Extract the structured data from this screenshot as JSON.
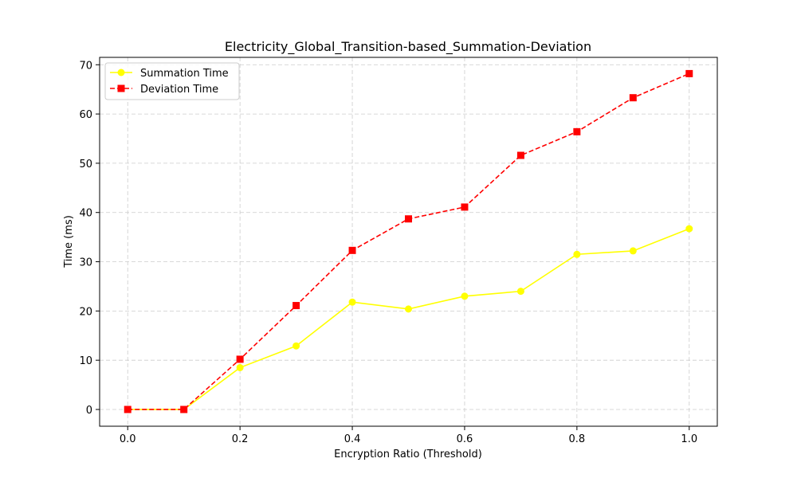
{
  "chart_data": {
    "type": "line",
    "title": "Electricity_Global_Transition-based_Summation-Deviation",
    "xlabel": "Encryption Ratio (Threshold)",
    "ylabel": "Time (ms)",
    "x": [
      0.0,
      0.1,
      0.2,
      0.3,
      0.4,
      0.5,
      0.6,
      0.7,
      0.8,
      0.9,
      1.0
    ],
    "xlim": [
      -0.05,
      1.05
    ],
    "ylim": [
      -3.4,
      71.5
    ],
    "x_ticks": [
      0.0,
      0.2,
      0.4,
      0.6,
      0.8,
      1.0
    ],
    "x_tick_labels": [
      "0.0",
      "0.2",
      "0.4",
      "0.6",
      "0.8",
      "1.0"
    ],
    "y_ticks": [
      0,
      10,
      20,
      30,
      40,
      50,
      60,
      70
    ],
    "y_tick_labels": [
      "0",
      "10",
      "20",
      "30",
      "40",
      "50",
      "60",
      "70"
    ],
    "grid": true,
    "legend_position": "top-left",
    "series": [
      {
        "name": "Summation Time",
        "color": "#ffff00",
        "marker": "circle",
        "line_style": "solid",
        "values": [
          0.0,
          0.0,
          8.5,
          12.9,
          21.8,
          20.4,
          23.0,
          24.0,
          31.5,
          32.2,
          36.7
        ]
      },
      {
        "name": "Deviation Time",
        "color": "#ff0000",
        "marker": "square",
        "line_style": "dashed",
        "values": [
          0.0,
          0.0,
          10.2,
          21.1,
          32.3,
          38.7,
          41.1,
          51.6,
          56.4,
          63.3,
          68.2
        ]
      }
    ]
  }
}
